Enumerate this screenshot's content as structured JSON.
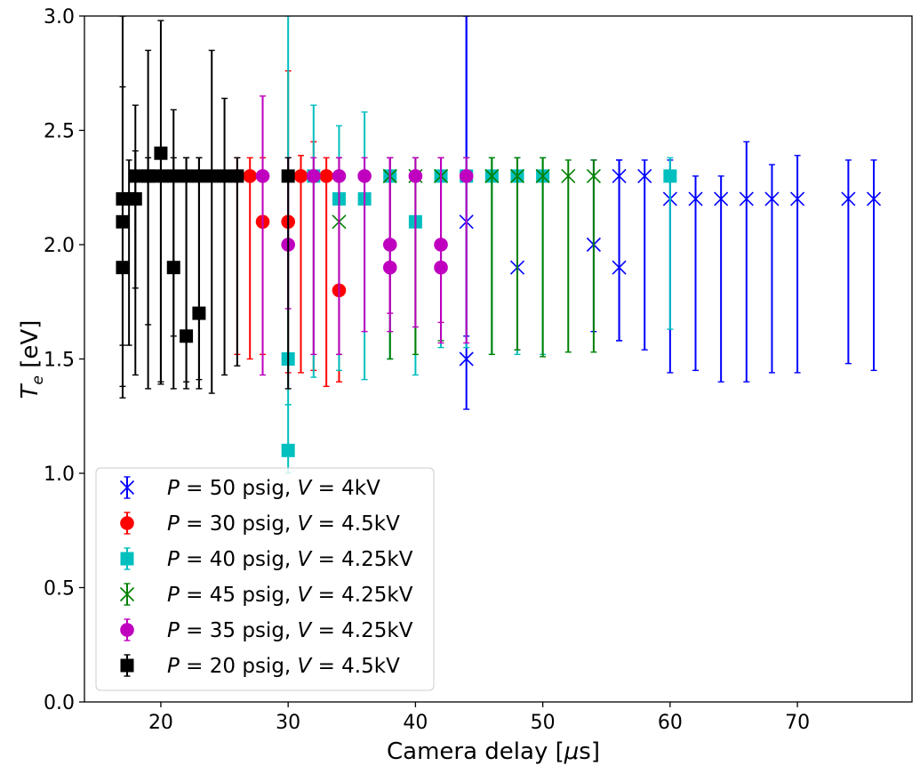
{
  "chart_data": {
    "type": "scatter",
    "title": "",
    "xlabel": "Camera delay [μs]",
    "ylabel": "T_e [eV]",
    "xlim": [
      14,
      79
    ],
    "ylim": [
      0.0,
      3.0
    ],
    "xticks": [
      20,
      30,
      40,
      50,
      60,
      70
    ],
    "yticks": [
      0.0,
      0.5,
      1.0,
      1.5,
      2.0,
      2.5,
      3.0
    ],
    "legend_position": "lower-left",
    "series": [
      {
        "name": "P = 50 psig, V = 4kV",
        "legend": {
          "p_val": "50",
          "v_val": "4kV"
        },
        "color": "#0000ff",
        "marker": "x",
        "points": [
          {
            "x": 44,
            "y": 2.1,
            "lo": 1.6,
            "hi": 3.0
          },
          {
            "x": 44,
            "y": 1.5,
            "lo": 1.28,
            "hi": 3.0
          },
          {
            "x": 48,
            "y": 1.9,
            "lo": 1.54,
            "hi": 2.38
          },
          {
            "x": 54,
            "y": 2.0,
            "lo": 1.62,
            "hi": 2.37
          },
          {
            "x": 56,
            "y": 2.3,
            "lo": 1.58,
            "hi": 2.37
          },
          {
            "x": 56,
            "y": 1.9,
            "lo": 1.58,
            "hi": 2.37
          },
          {
            "x": 58,
            "y": 2.3,
            "lo": 1.54,
            "hi": 2.37
          },
          {
            "x": 60,
            "y": 2.2,
            "lo": 1.44,
            "hi": 2.37
          },
          {
            "x": 62,
            "y": 2.2,
            "lo": 1.45,
            "hi": 2.3
          },
          {
            "x": 64,
            "y": 2.2,
            "lo": 1.4,
            "hi": 2.3
          },
          {
            "x": 66,
            "y": 2.2,
            "lo": 1.4,
            "hi": 2.45
          },
          {
            "x": 68,
            "y": 2.2,
            "lo": 1.44,
            "hi": 2.35
          },
          {
            "x": 70,
            "y": 2.2,
            "lo": 1.44,
            "hi": 2.39
          },
          {
            "x": 74,
            "y": 2.2,
            "lo": 1.48,
            "hi": 2.37
          },
          {
            "x": 76,
            "y": 2.2,
            "lo": 1.45,
            "hi": 2.37
          }
        ]
      },
      {
        "name": "P = 30 psig, V = 4.5kV",
        "legend": {
          "p_val": "30",
          "v_val": "4.5kV"
        },
        "color": "#ff0000",
        "marker": "o",
        "points": [
          {
            "x": 26,
            "y": 2.3,
            "lo": 1.52,
            "hi": 2.38
          },
          {
            "x": 27,
            "y": 2.3,
            "lo": 1.5,
            "hi": 2.38
          },
          {
            "x": 28,
            "y": 2.1,
            "lo": 1.52,
            "hi": 2.38
          },
          {
            "x": 30,
            "y": 2.1,
            "lo": 1.44,
            "hi": 2.76
          },
          {
            "x": 31,
            "y": 2.3,
            "lo": 1.44,
            "hi": 2.39
          },
          {
            "x": 32,
            "y": 2.3,
            "lo": 1.45,
            "hi": 2.45
          },
          {
            "x": 33,
            "y": 2.3,
            "lo": 1.38,
            "hi": 2.38
          },
          {
            "x": 34,
            "y": 1.8,
            "lo": 1.4,
            "hi": 2.38
          }
        ]
      },
      {
        "name": "P = 40 psig, V = 4.25kV",
        "legend": {
          "p_val": "40",
          "v_val": "4.25kV"
        },
        "color": "#00bfbf",
        "marker": "s",
        "points": [
          {
            "x": 30,
            "y": 1.5,
            "lo": 1.3,
            "hi": 3.0
          },
          {
            "x": 30,
            "y": 1.1,
            "lo": 1.0,
            "hi": 1.3
          },
          {
            "x": 32,
            "y": 2.3,
            "lo": 1.42,
            "hi": 2.61
          },
          {
            "x": 34,
            "y": 2.2,
            "lo": 1.45,
            "hi": 2.52
          },
          {
            "x": 36,
            "y": 2.2,
            "lo": 1.41,
            "hi": 2.58
          },
          {
            "x": 38,
            "y": 2.3,
            "lo": 1.5,
            "hi": 2.38
          },
          {
            "x": 40,
            "y": 2.1,
            "lo": 1.43,
            "hi": 2.38
          },
          {
            "x": 42,
            "y": 2.3,
            "lo": 1.55,
            "hi": 2.38
          },
          {
            "x": 44,
            "y": 2.3,
            "lo": 1.55,
            "hi": 2.38
          },
          {
            "x": 46,
            "y": 2.3,
            "lo": 1.52,
            "hi": 2.38
          },
          {
            "x": 48,
            "y": 2.3,
            "lo": 1.52,
            "hi": 2.38
          },
          {
            "x": 50,
            "y": 2.3,
            "lo": 1.52,
            "hi": 2.38
          },
          {
            "x": 60,
            "y": 2.3,
            "lo": 1.63,
            "hi": 2.38
          }
        ]
      },
      {
        "name": "P = 45 psig, V = 4.25kV",
        "legend": {
          "p_val": "45",
          "v_val": "4.25kV"
        },
        "color": "#008000",
        "marker": "x",
        "points": [
          {
            "x": 34,
            "y": 2.1,
            "lo": 1.52,
            "hi": 2.38
          },
          {
            "x": 38,
            "y": 2.3,
            "lo": 1.5,
            "hi": 2.38
          },
          {
            "x": 40,
            "y": 2.3,
            "lo": 1.52,
            "hi": 2.38
          },
          {
            "x": 42,
            "y": 2.3,
            "lo": 1.58,
            "hi": 2.38
          },
          {
            "x": 46,
            "y": 2.3,
            "lo": 1.52,
            "hi": 2.38
          },
          {
            "x": 48,
            "y": 2.3,
            "lo": 1.54,
            "hi": 2.38
          },
          {
            "x": 50,
            "y": 2.3,
            "lo": 1.51,
            "hi": 2.38
          },
          {
            "x": 52,
            "y": 2.3,
            "lo": 1.53,
            "hi": 2.37
          },
          {
            "x": 54,
            "y": 2.3,
            "lo": 1.53,
            "hi": 2.37
          }
        ]
      },
      {
        "name": "P = 35 psig, V = 4.25kV",
        "legend": {
          "p_val": "35",
          "v_val": "4.25kV"
        },
        "color": "#bf00bf",
        "marker": "o",
        "points": [
          {
            "x": 28,
            "y": 2.3,
            "lo": 1.43,
            "hi": 2.65
          },
          {
            "x": 30,
            "y": 2.0,
            "lo": 1.72,
            "hi": 2.38
          },
          {
            "x": 32,
            "y": 2.3,
            "lo": 1.52,
            "hi": 2.38
          },
          {
            "x": 34,
            "y": 2.3,
            "lo": 1.52,
            "hi": 2.38
          },
          {
            "x": 36,
            "y": 2.3,
            "lo": 1.62,
            "hi": 2.38
          },
          {
            "x": 38,
            "y": 2.0,
            "lo": 1.7,
            "hi": 2.38
          },
          {
            "x": 38,
            "y": 1.9,
            "lo": 1.62,
            "hi": 2.38
          },
          {
            "x": 40,
            "y": 2.3,
            "lo": 1.64,
            "hi": 2.38
          },
          {
            "x": 42,
            "y": 2.0,
            "lo": 1.66,
            "hi": 2.38
          },
          {
            "x": 42,
            "y": 1.9,
            "lo": 1.57,
            "hi": 2.38
          },
          {
            "x": 44,
            "y": 2.3,
            "lo": 1.57,
            "hi": 2.38
          }
        ]
      },
      {
        "name": "P = 20 psig, V = 4.5kV",
        "legend": {
          "p_val": "20",
          "v_val": "4.5kV"
        },
        "color": "#000000",
        "marker": "s",
        "points": [
          {
            "x": 17,
            "y": 2.2,
            "lo": 1.38,
            "hi": 3.0
          },
          {
            "x": 17,
            "y": 2.1,
            "lo": 1.33,
            "hi": 3.0
          },
          {
            "x": 17,
            "y": 1.9,
            "lo": 1.56,
            "hi": 2.69
          },
          {
            "x": 17.5,
            "y": 2.2,
            "lo": 1.56,
            "hi": 2.37
          },
          {
            "x": 18,
            "y": 2.2,
            "lo": 1.43,
            "hi": 2.61
          },
          {
            "x": 18,
            "y": 2.3,
            "lo": 1.81,
            "hi": 2.41
          },
          {
            "x": 19,
            "y": 2.3,
            "lo": 1.37,
            "hi": 2.85
          },
          {
            "x": 19,
            "y": 2.3,
            "lo": 1.65,
            "hi": 2.38
          },
          {
            "x": 20,
            "y": 2.4,
            "lo": 1.4,
            "hi": 2.98
          },
          {
            "x": 20,
            "y": 2.3,
            "lo": 1.39,
            "hi": 2.38
          },
          {
            "x": 21,
            "y": 2.3,
            "lo": 1.37,
            "hi": 2.59
          },
          {
            "x": 21,
            "y": 1.9,
            "lo": 1.6,
            "hi": 2.38
          },
          {
            "x": 22,
            "y": 2.3,
            "lo": 1.37,
            "hi": 2.38
          },
          {
            "x": 22,
            "y": 1.6,
            "lo": 1.4,
            "hi": 2.38
          },
          {
            "x": 23,
            "y": 2.3,
            "lo": 1.41,
            "hi": 2.38
          },
          {
            "x": 23,
            "y": 1.7,
            "lo": 1.37,
            "hi": 2.38
          },
          {
            "x": 24,
            "y": 2.3,
            "lo": 1.35,
            "hi": 2.85
          },
          {
            "x": 25,
            "y": 2.3,
            "lo": 1.43,
            "hi": 2.64
          },
          {
            "x": 26,
            "y": 2.3,
            "lo": 1.47,
            "hi": 2.38
          },
          {
            "x": 30,
            "y": 2.3,
            "lo": 1.37,
            "hi": 2.38
          }
        ]
      }
    ]
  }
}
